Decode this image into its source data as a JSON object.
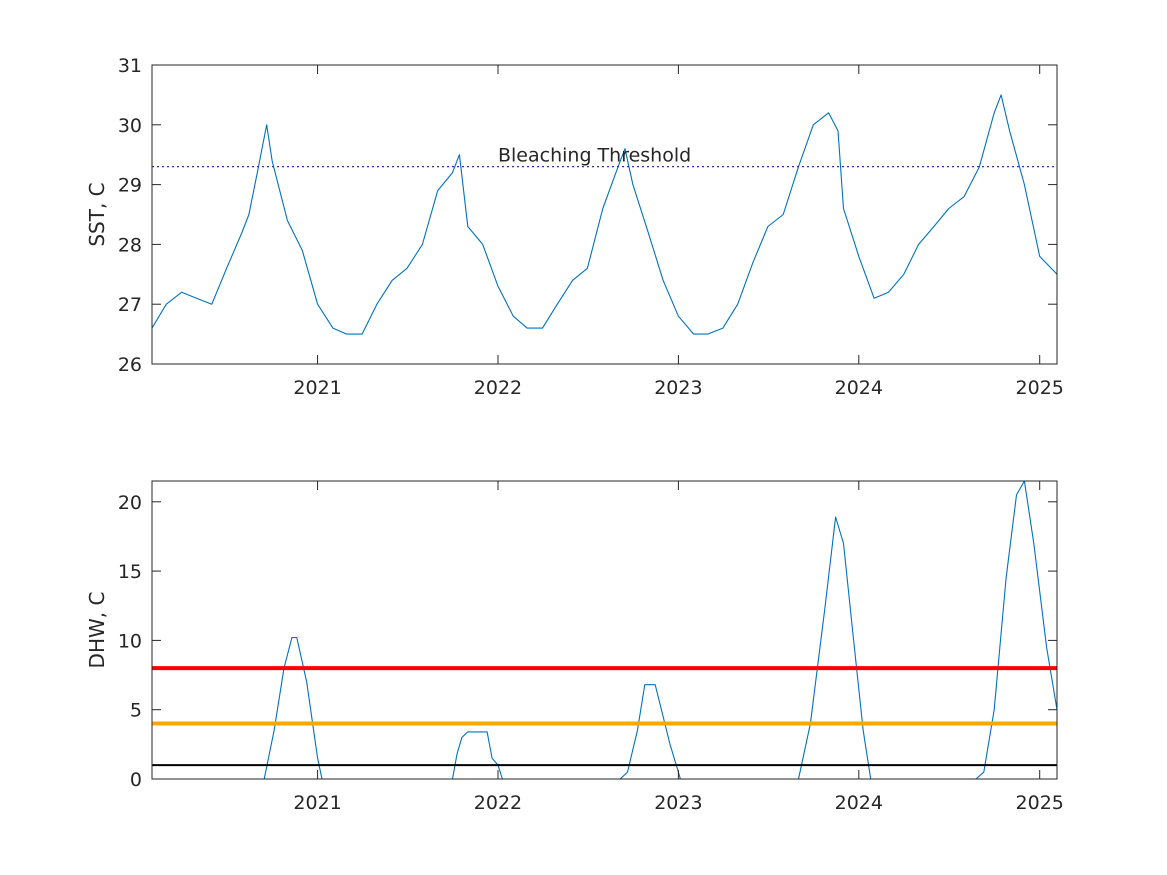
{
  "chart_data": [
    {
      "type": "line",
      "title": "",
      "xlabel": "",
      "ylabel": "SST, C",
      "xlim": [
        "2020-02-01",
        "2025-02-05"
      ],
      "ylim": [
        26,
        31
      ],
      "x_ticks": [
        "2021",
        "2022",
        "2023",
        "2024",
        "2025"
      ],
      "y_ticks": [
        "26",
        "27",
        "28",
        "29",
        "30",
        "31"
      ],
      "grid": false,
      "annotations": [
        {
          "text": "Bleaching Threshold",
          "x": "2022-01-01",
          "y": 29.5
        }
      ],
      "reference_lines": [
        {
          "y": 29.3,
          "style": "dotted",
          "color": "#3a2aa8"
        }
      ],
      "series": [
        {
          "color": "#0072bd",
          "x": [
            "2020-02-01",
            "2020-03-01",
            "2020-04-01",
            "2020-05-01",
            "2020-06-01",
            "2020-07-01",
            "2020-08-01",
            "2020-08-15",
            "2020-09-01",
            "2020-09-20",
            "2020-10-01",
            "2020-11-01",
            "2020-12-01",
            "2021-01-01",
            "2021-02-01",
            "2021-03-01",
            "2021-04-01",
            "2021-05-01",
            "2021-06-01",
            "2021-07-01",
            "2021-08-01",
            "2021-09-01",
            "2021-10-01",
            "2021-10-15",
            "2021-11-01",
            "2021-12-01",
            "2022-01-01",
            "2022-02-01",
            "2022-03-01",
            "2022-04-01",
            "2022-05-01",
            "2022-06-01",
            "2022-07-01",
            "2022-08-01",
            "2022-09-01",
            "2022-09-15",
            "2022-10-01",
            "2022-11-01",
            "2022-12-01",
            "2023-01-01",
            "2023-02-01",
            "2023-03-01",
            "2023-04-01",
            "2023-05-01",
            "2023-06-01",
            "2023-07-01",
            "2023-08-01",
            "2023-09-01",
            "2023-10-01",
            "2023-11-01",
            "2023-11-20",
            "2023-12-01",
            "2024-01-01",
            "2024-02-01",
            "2024-03-01",
            "2024-04-01",
            "2024-05-01",
            "2024-06-01",
            "2024-07-01",
            "2024-08-01",
            "2024-09-01",
            "2024-10-01",
            "2024-10-15",
            "2024-11-01",
            "2024-12-01",
            "2025-01-01",
            "2025-02-05"
          ],
          "y": [
            26.6,
            27.0,
            27.2,
            27.1,
            27.0,
            27.6,
            28.2,
            28.5,
            29.2,
            30.0,
            29.4,
            28.4,
            27.9,
            27.0,
            26.6,
            26.5,
            26.5,
            27.0,
            27.4,
            27.6,
            28.0,
            28.9,
            29.2,
            29.5,
            28.3,
            28.0,
            27.3,
            26.8,
            26.6,
            26.6,
            27.0,
            27.4,
            27.6,
            28.6,
            29.3,
            29.6,
            29.0,
            28.2,
            27.4,
            26.8,
            26.5,
            26.5,
            26.6,
            27.0,
            27.7,
            28.3,
            28.5,
            29.3,
            30.0,
            30.2,
            29.9,
            28.6,
            27.8,
            27.1,
            27.2,
            27.5,
            28.0,
            28.3,
            28.6,
            28.8,
            29.3,
            30.2,
            30.5,
            29.9,
            29.0,
            27.8,
            27.5
          ]
        }
      ]
    },
    {
      "type": "line",
      "title": "",
      "xlabel": "",
      "ylabel": "DHW, C",
      "xlim": [
        "2020-02-01",
        "2025-02-05"
      ],
      "ylim": [
        0,
        21.5
      ],
      "x_ticks": [
        "2021",
        "2022",
        "2023",
        "2024",
        "2025"
      ],
      "y_ticks": [
        "0",
        "5",
        "10",
        "15",
        "20"
      ],
      "grid": false,
      "reference_lines": [
        {
          "y": 1,
          "color": "#000000"
        },
        {
          "y": 4,
          "color": "#ffa500"
        },
        {
          "y": 8,
          "color": "#ff0000"
        }
      ],
      "series": [
        {
          "color": "#0072bd",
          "x": [
            "2020-02-01",
            "2020-09-15",
            "2020-10-05",
            "2020-10-25",
            "2020-11-10",
            "2020-11-20",
            "2020-12-10",
            "2021-01-01",
            "2021-01-10",
            "2021-10-01",
            "2021-10-10",
            "2021-10-20",
            "2021-11-01",
            "2021-12-10",
            "2021-12-20",
            "2022-01-01",
            "2022-01-10",
            "2022-09-05",
            "2022-09-20",
            "2022-10-10",
            "2022-10-25",
            "2022-11-15",
            "2022-12-15",
            "2023-01-01",
            "2023-01-05",
            "2023-09-01",
            "2023-09-25",
            "2023-10-25",
            "2023-11-15",
            "2023-12-01",
            "2023-12-20",
            "2024-01-10",
            "2024-01-25",
            "2024-08-25",
            "2024-09-10",
            "2024-10-01",
            "2024-10-25",
            "2024-11-15",
            "2024-12-01",
            "2024-12-20",
            "2025-01-15",
            "2025-02-05"
          ],
          "y": [
            0,
            0,
            3.5,
            8.0,
            10.2,
            10.2,
            7.0,
            1.5,
            0,
            0,
            1.8,
            3.0,
            3.4,
            3.4,
            1.5,
            1.0,
            0,
            0,
            0.5,
            3.5,
            6.8,
            6.8,
            2.5,
            0.5,
            0,
            0,
            4.0,
            12.5,
            18.9,
            17.0,
            10.5,
            3.5,
            0,
            0,
            0.5,
            5.0,
            14.5,
            20.5,
            21.5,
            17.0,
            9.5,
            5.0
          ]
        }
      ]
    }
  ]
}
